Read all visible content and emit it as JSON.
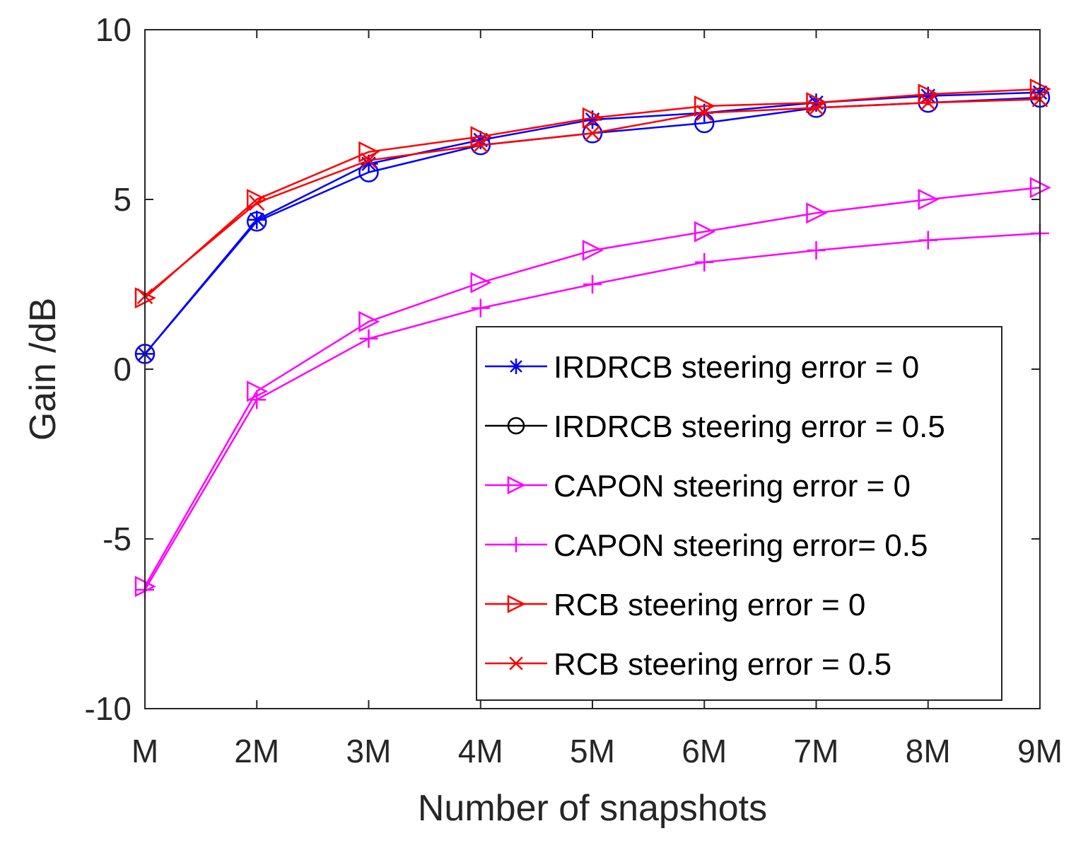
{
  "chart_data": {
    "type": "line",
    "title": "",
    "xlabel": "Number of snapshots",
    "ylabel": "Gain /dB",
    "categories": [
      "M",
      "2M",
      "3M",
      "4M",
      "5M",
      "6M",
      "7M",
      "8M",
      "9M"
    ],
    "ylim": [
      -10,
      10
    ],
    "yticks": [
      -10,
      -5,
      0,
      5,
      10
    ],
    "grid": false,
    "legend_position": "bottom-right",
    "series": [
      {
        "name": "IRDRCB steering error = 0",
        "color": "#0000ff",
        "marker": "star",
        "legend_marker_color": "#0000ff",
        "values": [
          0.45,
          4.4,
          6.05,
          6.75,
          7.35,
          7.55,
          7.85,
          8.05,
          8.15
        ]
      },
      {
        "name": "IRDRCB steering error = 0.5",
        "color": "#0000ff",
        "marker": "circle",
        "legend_marker_color": "#000000",
        "values": [
          0.45,
          4.35,
          5.8,
          6.6,
          6.95,
          7.25,
          7.7,
          7.85,
          8.0
        ]
      },
      {
        "name": "CAPON steering error = 0",
        "color": "#ff00ff",
        "marker": "triangle-right",
        "legend_marker_color": "#ff00ff",
        "values": [
          -6.4,
          -0.65,
          1.4,
          2.55,
          3.5,
          4.05,
          4.6,
          5.0,
          5.35
        ]
      },
      {
        "name": "CAPON steering error= 0.5",
        "color": "#ff00ff",
        "marker": "plus",
        "legend_marker_color": "#ff00ff",
        "values": [
          -6.5,
          -0.9,
          0.9,
          1.8,
          2.5,
          3.15,
          3.5,
          3.8,
          4.0
        ]
      },
      {
        "name": "RCB steering error = 0",
        "color": "#ff0000",
        "marker": "triangle-right",
        "legend_marker_color": "#ff0000",
        "values": [
          2.1,
          5.0,
          6.4,
          6.85,
          7.4,
          7.75,
          7.85,
          8.1,
          8.25
        ]
      },
      {
        "name": "RCB steering error = 0.5",
        "color": "#ff0000",
        "marker": "x",
        "legend_marker_color": "#ff0000",
        "values": [
          2.15,
          4.9,
          6.15,
          6.6,
          6.95,
          7.55,
          7.7,
          7.85,
          7.95
        ]
      }
    ]
  }
}
